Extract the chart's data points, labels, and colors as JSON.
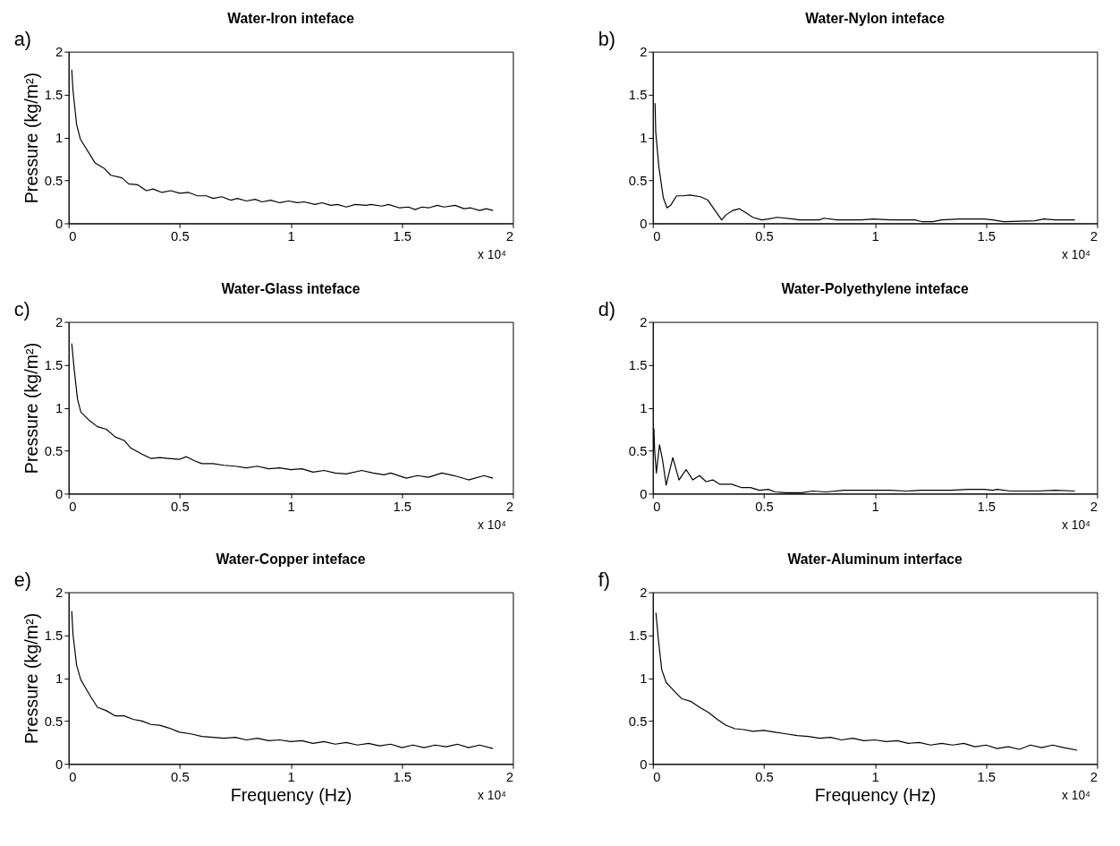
{
  "chart_data": [
    {
      "type": "line",
      "title": "Water-Iron inteface",
      "ylabel": "Pressure (kg/m²)",
      "annotations": [
        "a)",
        "x 10⁴"
      ],
      "xlim": [
        0,
        2
      ],
      "xticks": [
        0,
        0.5,
        1,
        1.5,
        2
      ],
      "ylim": [
        0,
        2
      ],
      "yticks": [
        0,
        0.5,
        1,
        1.5,
        2
      ],
      "grid": false,
      "series": [
        {
          "color": "#000000",
          "x": [
            0.014,
            0.02,
            0.036,
            0.053,
            0.12,
            0.16,
            0.19,
            0.24,
            0.27,
            0.31,
            0.35,
            0.38,
            0.42,
            0.46,
            0.5,
            0.54,
            0.58,
            0.62,
            0.65,
            0.69,
            0.73,
            0.76,
            0.8,
            0.84,
            0.87,
            0.91,
            0.95,
            0.99,
            1.03,
            1.06,
            1.11,
            1.14,
            1.18,
            1.21,
            1.25,
            1.29,
            1.34,
            1.36,
            1.41,
            1.44,
            1.49,
            1.53,
            1.56,
            1.59,
            1.62,
            1.66,
            1.69,
            1.74,
            1.78,
            1.81,
            1.85,
            1.88,
            1.91
          ],
          "values": [
            1.79,
            1.54,
            1.15,
            0.98,
            0.7,
            0.64,
            0.56,
            0.53,
            0.46,
            0.45,
            0.38,
            0.4,
            0.36,
            0.38,
            0.35,
            0.36,
            0.32,
            0.32,
            0.29,
            0.31,
            0.27,
            0.29,
            0.26,
            0.28,
            0.25,
            0.27,
            0.24,
            0.26,
            0.24,
            0.25,
            0.22,
            0.24,
            0.21,
            0.22,
            0.19,
            0.22,
            0.21,
            0.22,
            0.2,
            0.22,
            0.18,
            0.19,
            0.16,
            0.19,
            0.18,
            0.21,
            0.19,
            0.21,
            0.17,
            0.18,
            0.15,
            0.17,
            0.15
          ]
        }
      ]
    },
    {
      "type": "line",
      "title": "Water-Nylon inteface",
      "annotations": [
        "b)",
        "x 10⁴"
      ],
      "xlim": [
        0,
        2
      ],
      "xticks": [
        0,
        0.5,
        1,
        1.5,
        2
      ],
      "ylim": [
        0,
        2
      ],
      "yticks": [
        0,
        0.5,
        1,
        1.5,
        2
      ],
      "grid": false,
      "series": [
        {
          "color": "#000000",
          "x": [
            0.01,
            0.013,
            0.027,
            0.047,
            0.064,
            0.08,
            0.107,
            0.134,
            0.168,
            0.214,
            0.248,
            0.28,
            0.31,
            0.33,
            0.36,
            0.39,
            0.415,
            0.45,
            0.49,
            0.52,
            0.56,
            0.63,
            0.66,
            0.75,
            0.77,
            0.83,
            0.94,
            0.99,
            1.07,
            1.18,
            1.21,
            1.26,
            1.3,
            1.38,
            1.49,
            1.53,
            1.58,
            1.72,
            1.76,
            1.81,
            1.9
          ],
          "values": [
            1.4,
            1.07,
            0.66,
            0.3,
            0.18,
            0.21,
            0.32,
            0.32,
            0.33,
            0.31,
            0.27,
            0.15,
            0.04,
            0.1,
            0.15,
            0.17,
            0.13,
            0.07,
            0.04,
            0.05,
            0.07,
            0.05,
            0.04,
            0.04,
            0.06,
            0.04,
            0.04,
            0.05,
            0.04,
            0.04,
            0.02,
            0.02,
            0.04,
            0.05,
            0.05,
            0.04,
            0.02,
            0.03,
            0.05,
            0.04,
            0.04
          ]
        }
      ]
    },
    {
      "type": "line",
      "title": "Water-Glass inteface",
      "ylabel": "Pressure (kg/m²)",
      "annotations": [
        "c)",
        "x 10⁴"
      ],
      "xlim": [
        0,
        2
      ],
      "xticks": [
        0,
        0.5,
        1,
        1.5,
        2
      ],
      "ylim": [
        0,
        2
      ],
      "yticks": [
        0,
        0.5,
        1,
        1.5,
        2
      ],
      "grid": false,
      "series": [
        {
          "color": "#000000",
          "x": [
            0.014,
            0.025,
            0.04,
            0.055,
            0.09,
            0.13,
            0.17,
            0.21,
            0.25,
            0.28,
            0.33,
            0.37,
            0.41,
            0.45,
            0.5,
            0.53,
            0.57,
            0.6,
            0.65,
            0.7,
            0.75,
            0.8,
            0.85,
            0.9,
            0.95,
            1.0,
            1.05,
            1.1,
            1.15,
            1.2,
            1.25,
            1.32,
            1.37,
            1.42,
            1.45,
            1.52,
            1.57,
            1.62,
            1.68,
            1.75,
            1.8,
            1.87,
            1.91
          ],
          "values": [
            1.75,
            1.45,
            1.1,
            0.95,
            0.86,
            0.78,
            0.75,
            0.66,
            0.62,
            0.53,
            0.46,
            0.41,
            0.42,
            0.41,
            0.4,
            0.43,
            0.38,
            0.35,
            0.35,
            0.33,
            0.32,
            0.3,
            0.32,
            0.29,
            0.3,
            0.28,
            0.29,
            0.25,
            0.27,
            0.24,
            0.23,
            0.27,
            0.24,
            0.22,
            0.24,
            0.18,
            0.21,
            0.19,
            0.24,
            0.2,
            0.16,
            0.21,
            0.18
          ]
        }
      ]
    },
    {
      "type": "line",
      "title": "Water-Polyethylene inteface",
      "annotations": [
        "d)",
        "x 10⁴"
      ],
      "xlim": [
        0,
        2
      ],
      "xticks": [
        0,
        0.5,
        1,
        1.5,
        2
      ],
      "ylim": [
        0,
        2
      ],
      "yticks": [
        0,
        0.5,
        1,
        1.5,
        2
      ],
      "grid": false,
      "series": [
        {
          "color": "#000000",
          "x": [
            0.005,
            0.008,
            0.016,
            0.03,
            0.044,
            0.06,
            0.09,
            0.118,
            0.15,
            0.18,
            0.21,
            0.24,
            0.27,
            0.3,
            0.355,
            0.4,
            0.44,
            0.48,
            0.52,
            0.55,
            0.6,
            0.67,
            0.72,
            0.78,
            0.86,
            0.94,
            0.99,
            1.07,
            1.14,
            1.21,
            1.27,
            1.34,
            1.42,
            1.49,
            1.53,
            1.55,
            1.61,
            1.73,
            1.81,
            1.9
          ],
          "values": [
            0.76,
            0.51,
            0.24,
            0.57,
            0.39,
            0.1,
            0.42,
            0.16,
            0.28,
            0.16,
            0.21,
            0.14,
            0.16,
            0.11,
            0.11,
            0.07,
            0.07,
            0.04,
            0.05,
            0.02,
            0.01,
            0.01,
            0.03,
            0.02,
            0.04,
            0.04,
            0.04,
            0.04,
            0.03,
            0.04,
            0.04,
            0.04,
            0.05,
            0.05,
            0.04,
            0.05,
            0.03,
            0.03,
            0.04,
            0.03
          ]
        }
      ]
    },
    {
      "type": "line",
      "title": "Water-Copper inteface",
      "ylabel": "Pressure (kg/m²)",
      "xlabel": "Frequency (Hz)",
      "annotations": [
        "e)",
        "x 10⁴"
      ],
      "xlim": [
        0,
        2
      ],
      "xticks": [
        0,
        0.5,
        1,
        1.5,
        2
      ],
      "ylim": [
        0,
        2
      ],
      "yticks": [
        0,
        0.5,
        1,
        1.5,
        2
      ],
      "grid": false,
      "series": [
        {
          "color": "#000000",
          "x": [
            0.014,
            0.02,
            0.036,
            0.055,
            0.1,
            0.13,
            0.17,
            0.21,
            0.25,
            0.29,
            0.33,
            0.37,
            0.41,
            0.45,
            0.5,
            0.55,
            0.6,
            0.65,
            0.7,
            0.75,
            0.8,
            0.85,
            0.9,
            0.95,
            1.0,
            1.05,
            1.1,
            1.15,
            1.2,
            1.25,
            1.3,
            1.35,
            1.4,
            1.45,
            1.5,
            1.55,
            1.6,
            1.65,
            1.7,
            1.75,
            1.8,
            1.85,
            1.91
          ],
          "values": [
            1.78,
            1.5,
            1.15,
            0.98,
            0.78,
            0.66,
            0.62,
            0.56,
            0.56,
            0.52,
            0.5,
            0.46,
            0.45,
            0.42,
            0.37,
            0.35,
            0.32,
            0.31,
            0.3,
            0.31,
            0.28,
            0.3,
            0.27,
            0.28,
            0.26,
            0.27,
            0.24,
            0.26,
            0.23,
            0.25,
            0.22,
            0.24,
            0.21,
            0.23,
            0.19,
            0.22,
            0.19,
            0.22,
            0.2,
            0.23,
            0.19,
            0.22,
            0.18
          ]
        }
      ]
    },
    {
      "type": "line",
      "title": "Water-Aluminum interface",
      "xlabel": "Frequency (Hz)",
      "annotations": [
        "f)",
        "x 10⁴"
      ],
      "xlim": [
        0,
        2
      ],
      "xticks": [
        0,
        0.5,
        1,
        1.5,
        2
      ],
      "ylim": [
        0,
        2
      ],
      "yticks": [
        0,
        0.5,
        1,
        1.5,
        2
      ],
      "grid": false,
      "series": [
        {
          "color": "#000000",
          "x": [
            0.014,
            0.025,
            0.04,
            0.06,
            0.1,
            0.13,
            0.17,
            0.21,
            0.25,
            0.29,
            0.33,
            0.37,
            0.41,
            0.45,
            0.5,
            0.55,
            0.6,
            0.65,
            0.7,
            0.75,
            0.8,
            0.85,
            0.9,
            0.95,
            1.0,
            1.05,
            1.1,
            1.15,
            1.2,
            1.25,
            1.3,
            1.35,
            1.4,
            1.45,
            1.5,
            1.55,
            1.6,
            1.65,
            1.7,
            1.75,
            1.8,
            1.85,
            1.91
          ],
          "values": [
            1.76,
            1.45,
            1.1,
            0.95,
            0.84,
            0.76,
            0.73,
            0.66,
            0.6,
            0.52,
            0.45,
            0.41,
            0.4,
            0.38,
            0.39,
            0.37,
            0.35,
            0.33,
            0.32,
            0.3,
            0.31,
            0.28,
            0.3,
            0.27,
            0.28,
            0.26,
            0.27,
            0.24,
            0.25,
            0.22,
            0.24,
            0.22,
            0.24,
            0.2,
            0.22,
            0.18,
            0.2,
            0.17,
            0.22,
            0.19,
            0.22,
            0.19,
            0.16
          ]
        }
      ]
    }
  ]
}
